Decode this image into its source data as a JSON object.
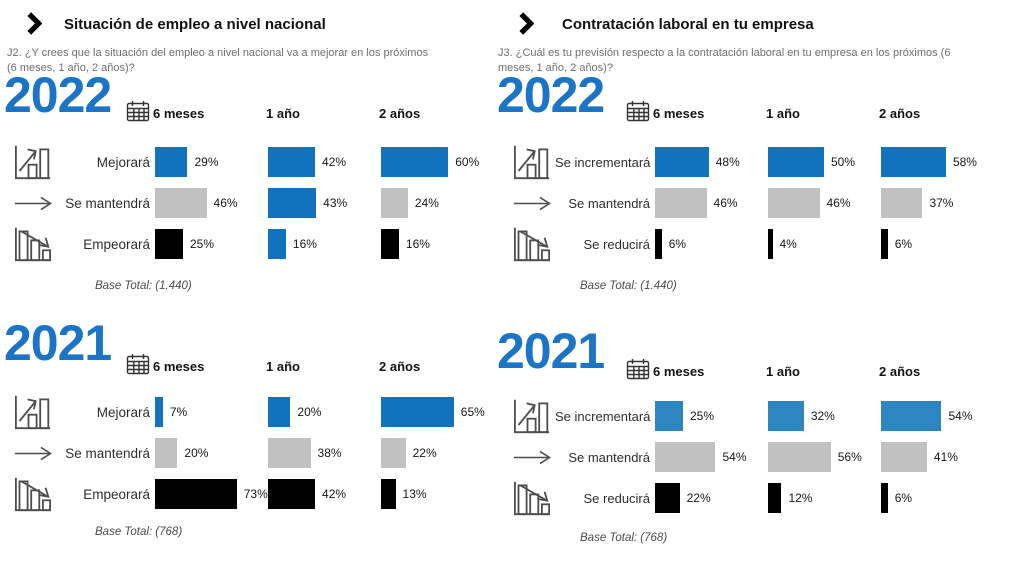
{
  "page": {
    "background": "#FFFFFF",
    "colors": {
      "blue": "#1173BD",
      "light_blue": "#2E86C1",
      "gray": "#C1C1C1",
      "black": "#000000",
      "year_blue": "#1B74C6"
    }
  },
  "sections": [
    {
      "title": "Situación de empleo a nivel nacional",
      "question": "J2. ¿Y crees que la situación del empleo a nivel nacional va a mejorar en los próximos (6 meses, 1 año, 2 años)?"
    },
    {
      "title": "Contratación laboral en tu empresa",
      "question": "J3. ¿Cuál es tu previsión respecto a la contratación laboral en tu empresa en los próximos (6 meses, 1 año, 2 años)?"
    }
  ],
  "chart_data": [
    {
      "type": "bar",
      "orientation": "horizontal",
      "position": "top-left",
      "title": "Situación de empleo a nivel nacional",
      "year": "2022",
      "unit": "%",
      "xlim": [
        0,
        100
      ],
      "columns": [
        "6 meses",
        "1 año",
        "2 años"
      ],
      "categories": [
        "Mejorará",
        "Se mantendrá",
        "Empeorará"
      ],
      "category_icons": [
        "chart-increase-icon",
        "arrow-right-icon",
        "chart-decrease-icon"
      ],
      "series": [
        {
          "name": "6 meses",
          "values": [
            29,
            46,
            25
          ],
          "colors": [
            "blue",
            "gray",
            "black"
          ]
        },
        {
          "name": "1 año",
          "values": [
            42,
            43,
            16
          ],
          "colors": [
            "blue",
            "blue",
            "blue"
          ]
        },
        {
          "name": "2 años",
          "values": [
            60,
            24,
            16
          ],
          "colors": [
            "blue",
            "gray",
            "black"
          ]
        }
      ],
      "base_total": "Base Total: (1.440)"
    },
    {
      "type": "bar",
      "orientation": "horizontal",
      "position": "top-right",
      "title": "Contratación laboral en tu empresa",
      "year": "2022",
      "unit": "%",
      "xlim": [
        0,
        100
      ],
      "columns": [
        "6 meses",
        "1 año",
        "2 años"
      ],
      "categories": [
        "Se incrementará",
        "Se mantendrá",
        "Se reducirá"
      ],
      "category_icons": [
        "chart-increase-icon",
        "arrow-right-icon",
        "chart-decrease-icon"
      ],
      "series": [
        {
          "name": "6 meses",
          "values": [
            48,
            46,
            6
          ],
          "colors": [
            "blue",
            "gray",
            "black"
          ]
        },
        {
          "name": "1 año",
          "values": [
            50,
            46,
            4
          ],
          "colors": [
            "blue",
            "gray",
            "black"
          ]
        },
        {
          "name": "2 años",
          "values": [
            58,
            37,
            6
          ],
          "colors": [
            "blue",
            "gray",
            "black"
          ]
        }
      ],
      "base_total": "Base Total: (1.440)"
    },
    {
      "type": "bar",
      "orientation": "horizontal",
      "position": "bottom-left",
      "title": "Situación de empleo a nivel nacional",
      "year": "2021",
      "unit": "%",
      "xlim": [
        0,
        100
      ],
      "columns": [
        "6 meses",
        "1 año",
        "2 años"
      ],
      "categories": [
        "Mejorará",
        "Se mantendrá",
        "Empeorará"
      ],
      "category_icons": [
        "chart-increase-icon",
        "arrow-right-icon",
        "chart-decrease-icon"
      ],
      "series": [
        {
          "name": "6 meses",
          "values": [
            7,
            20,
            73
          ],
          "colors": [
            "blue",
            "gray",
            "black"
          ]
        },
        {
          "name": "1 año",
          "values": [
            20,
            38,
            42
          ],
          "colors": [
            "blue",
            "gray",
            "black"
          ]
        },
        {
          "name": "2 años",
          "values": [
            65,
            22,
            13
          ],
          "colors": [
            "blue",
            "gray",
            "black"
          ]
        }
      ],
      "base_total": "Base Total: (768)"
    },
    {
      "type": "bar",
      "orientation": "horizontal",
      "position": "bottom-right",
      "title": "Contratación laboral en tu empresa",
      "year": "2021",
      "unit": "%",
      "xlim": [
        0,
        100
      ],
      "columns": [
        "6 meses",
        "1 año",
        "2 años"
      ],
      "categories": [
        "Se incrementará",
        "Se mantendrá",
        "Se reducirá"
      ],
      "category_icons": [
        "chart-increase-icon",
        "arrow-right-icon",
        "chart-decrease-icon"
      ],
      "series": [
        {
          "name": "6 meses",
          "values": [
            25,
            54,
            22
          ],
          "colors": [
            "light_blue",
            "gray",
            "black"
          ]
        },
        {
          "name": "1 año",
          "values": [
            32,
            56,
            12
          ],
          "colors": [
            "light_blue",
            "gray",
            "black"
          ]
        },
        {
          "name": "2 años",
          "values": [
            54,
            41,
            6
          ],
          "colors": [
            "light_blue",
            "gray",
            "black"
          ]
        }
      ],
      "base_total": "Base Total: (768)"
    }
  ]
}
